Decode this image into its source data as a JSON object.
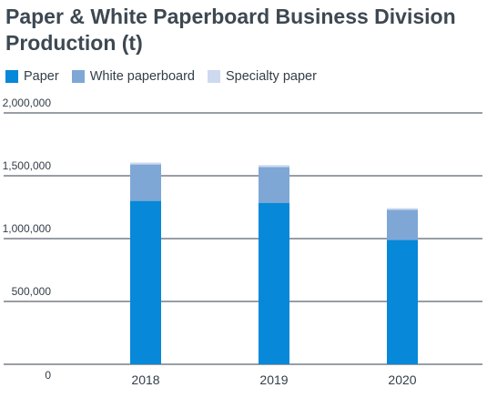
{
  "chart_data": {
    "type": "bar",
    "stacked": true,
    "title": "Paper & White Paperboard Business Division Production (t)",
    "categories": [
      "2018",
      "2019",
      "2020"
    ],
    "series": [
      {
        "name": "Paper",
        "color": "#0788d8",
        "values": [
          1300000,
          1285000,
          990000
        ]
      },
      {
        "name": "White paperboard",
        "color": "#7ea7d6",
        "values": [
          290000,
          285000,
          240000
        ]
      },
      {
        "name": "Specialty paper",
        "color": "#cdd9ee",
        "values": [
          15000,
          15000,
          12000
        ]
      }
    ],
    "ylim": [
      0,
      2000000
    ],
    "yticks": [
      0,
      500000,
      1000000,
      1500000,
      2000000
    ],
    "ytick_labels": [
      "0",
      "500,000",
      "1,000,000",
      "1,500,000",
      "2,000,000"
    ],
    "grid": true,
    "legend_position": "top-left"
  }
}
